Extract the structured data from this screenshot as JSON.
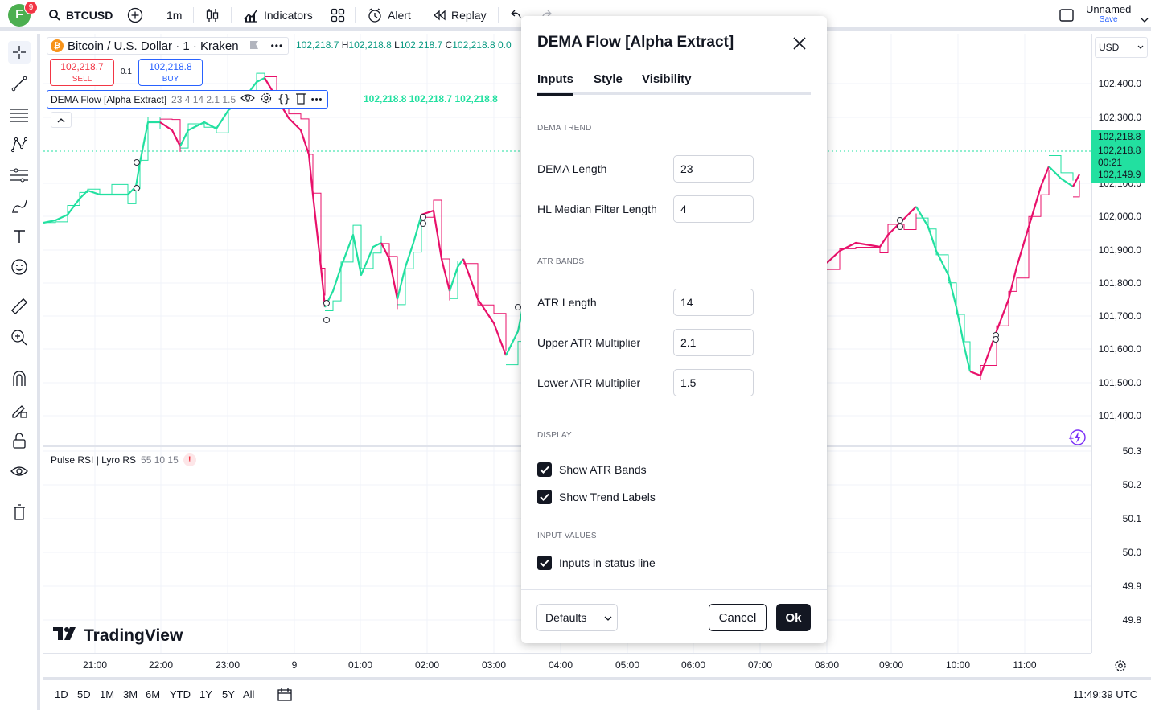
{
  "header": {
    "avatar_letter": "F",
    "notifications": "9",
    "symbol": "BTCUSD",
    "interval": "1m",
    "indicators_label": "Indicators",
    "alert_label": "Alert",
    "replay_label": "Replay",
    "layout_name": "Unnamed",
    "layout_save": "Save"
  },
  "legend": {
    "symbol_title": "Bitcoin / U.S. Dollar · 1 · Kraken",
    "ohlc_text": "102,218.7",
    "h_label": "H",
    "h_value": "102,218.8",
    "l_label": "L",
    "l_value": "102,218.7",
    "c_label": "C",
    "c_value": "102,218.8",
    "c_tail": "0.0",
    "sell_price": "102,218.7",
    "sell_label": "SELL",
    "buy_price": "102,218.8",
    "buy_label": "BUY",
    "spread": "0.1",
    "indicator_name": "DEMA Flow [Alpha Extract]",
    "indicator_params": "23 4 14 2.1 1.5",
    "indicator_values": "102,218.8  102,218.7  102,218.8",
    "rsi_name": "Pulse RSI | Lyro RS",
    "rsi_params": "55 10 15",
    "rsi_warn": "!"
  },
  "price_axis": {
    "currency": "USD",
    "labels": [
      "102,400.0",
      "102,300.0",
      "102,100.0",
      "102,000.0",
      "101,900.0",
      "101,800.0",
      "101,700.0",
      "101,600.0",
      "101,500.0",
      "101,400.0"
    ],
    "rsi_labels": [
      "50.3",
      "50.2",
      "50.1",
      "50.0",
      "49.9",
      "49.8"
    ],
    "tag_price_1": "102,218.8",
    "tag_price_2": "102,218.8",
    "tag_countdown": "00:21",
    "tag_price_3": "102,149.9"
  },
  "time_axis": {
    "labels": [
      "21:00",
      "22:00",
      "23:00",
      "9",
      "01:00",
      "02:00",
      "03:00",
      "04:00",
      "05:00",
      "06:00",
      "07:00",
      "08:00",
      "09:00",
      "10:00",
      "11:00"
    ]
  },
  "bottom": {
    "ranges": [
      "1D",
      "5D",
      "1M",
      "3M",
      "6M",
      "YTD",
      "1Y",
      "5Y",
      "All"
    ],
    "clock": "11:49:39 UTC"
  },
  "brand": {
    "logo_text": "TradingView"
  },
  "dialog": {
    "title": "DEMA Flow [Alpha Extract]",
    "tabs": [
      "Inputs",
      "Style",
      "Visibility"
    ],
    "sections": {
      "dema_trend": "DEMA TREND",
      "atr_bands": "ATR BANDS",
      "display": "DISPLAY",
      "input_values": "INPUT VALUES"
    },
    "fields": {
      "dema_length_label": "DEMA Length",
      "dema_length_value": "23",
      "hl_median_label": "HL Median Filter Length",
      "hl_median_value": "4",
      "atr_length_label": "ATR Length",
      "atr_length_value": "14",
      "upper_atr_label": "Upper ATR Multiplier",
      "upper_atr_value": "2.1",
      "lower_atr_label": "Lower ATR Multiplier",
      "lower_atr_value": "1.5"
    },
    "checks": {
      "show_atr_bands": "Show ATR Bands",
      "show_trend_labels": "Show Trend Labels",
      "inputs_in_status_line": "Inputs in status line"
    },
    "footer": {
      "defaults_label": "Defaults",
      "cancel_label": "Cancel",
      "ok_label": "Ok"
    }
  },
  "colors": {
    "bull": "#22e0a0",
    "bear": "#e8106a",
    "accent": "#2962ff",
    "dark": "#131722"
  }
}
